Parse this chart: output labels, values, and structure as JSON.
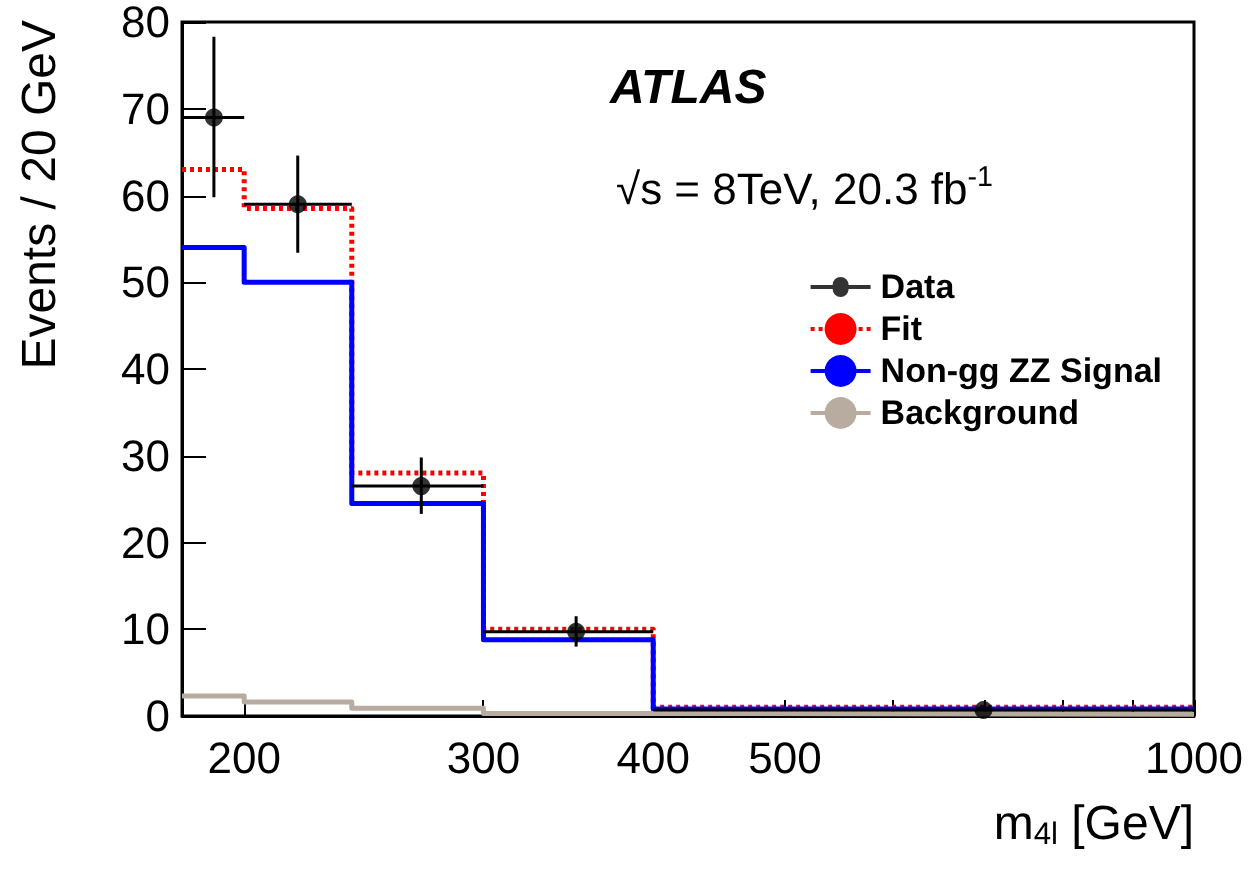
{
  "chart_data": {
    "type": "histogram",
    "xlabel": "m$_{4l}$ [GeV]",
    "ylabel": "Events / 20 GeV",
    "annotations": [
      "ATLAS",
      "√s = 8TeV, 20.3 fb$^{-1}$"
    ],
    "bins": [
      180,
      200,
      240,
      300,
      400,
      1000
    ],
    "series": [
      {
        "name": "Data",
        "type": "scatter",
        "color": "#000000",
        "marker": "circle",
        "x": [
          190,
          219,
          270,
          351,
          700
        ],
        "values": [
          69,
          59,
          26.5,
          9.7,
          0.7
        ],
        "errors": [
          [
            59.8,
            78.3
          ],
          [
            53.4,
            64.6
          ],
          [
            23.3,
            29.8
          ],
          [
            8,
            11.5
          ],
          null
        ],
        "xerrors": [
          [
            180,
            200
          ],
          [
            200,
            240
          ],
          [
            240,
            300
          ],
          [
            300,
            400
          ],
          [
            400,
            1000
          ]
        ]
      },
      {
        "name": "Fit",
        "type": "histogram",
        "color": "#ff0000",
        "line_style": "dotted",
        "values": [
          63,
          58.5,
          28,
          10,
          1
        ]
      },
      {
        "name": "Non-gg ZZ Signal",
        "type": "histogram",
        "color": "#0000ff",
        "line_style": "solid",
        "values": [
          54,
          50,
          24.5,
          8.8,
          0.8
        ]
      },
      {
        "name": "Background",
        "type": "histogram",
        "color": "#b8aca0",
        "line_style": "solid",
        "values": [
          2.3,
          1.6,
          0.9,
          0.3,
          0.2
        ]
      }
    ],
    "log": "x",
    "xlim": [
      180,
      1000
    ],
    "xticks": [
      200,
      300,
      400,
      500,
      {
        "value": 600,
        "label": null
      },
      {
        "value": 700,
        "label": null
      },
      {
        "value": 800,
        "label": null
      },
      {
        "value": 900,
        "label": null
      },
      1000
    ],
    "ylim": [
      0,
      80
    ],
    "yticks": [
      0,
      10,
      20,
      30,
      40,
      50,
      60,
      70,
      80
    ],
    "grid": false,
    "legend": "right"
  }
}
